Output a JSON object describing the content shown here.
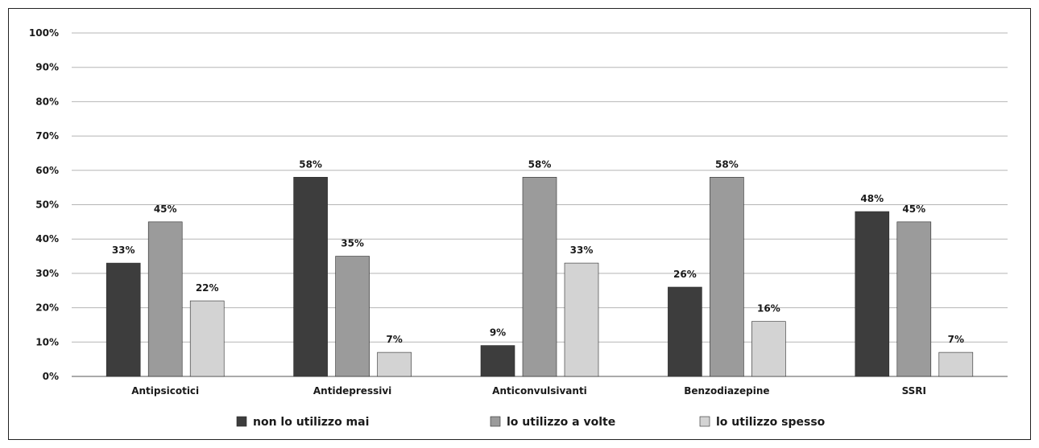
{
  "chart_data": {
    "type": "bar",
    "categories": [
      "Antipsicotici",
      "Antidepressivi",
      "Anticonvulsivanti",
      "Benzodiazepine",
      "SSRI"
    ],
    "series": [
      {
        "name": "non lo utilizzo mai",
        "color": "#3d3d3d",
        "values": [
          33,
          58,
          9,
          26,
          48
        ],
        "labels": [
          "33%",
          "58%",
          "9%",
          "26%",
          "48%"
        ]
      },
      {
        "name": "lo utilizzo a volte",
        "color": "#9b9b9b",
        "values": [
          45,
          35,
          58,
          58,
          45
        ],
        "labels": [
          "45%",
          "35%",
          "58%",
          "58%",
          "45%"
        ]
      },
      {
        "name": "lo utilizzo spesso",
        "color": "#d3d3d3",
        "values": [
          22,
          7,
          33,
          16,
          7
        ],
        "labels": [
          "22%",
          "7%",
          "33%",
          "16%",
          "7%"
        ]
      }
    ],
    "y_ticks": [
      "0%",
      "10%",
      "20%",
      "30%",
      "40%",
      "50%",
      "60%",
      "70%",
      "80%",
      "90%",
      "100%"
    ],
    "ylim": [
      0,
      100
    ],
    "grid": true,
    "legend_position": "bottom",
    "title": "",
    "xlabel": "",
    "ylabel": ""
  }
}
